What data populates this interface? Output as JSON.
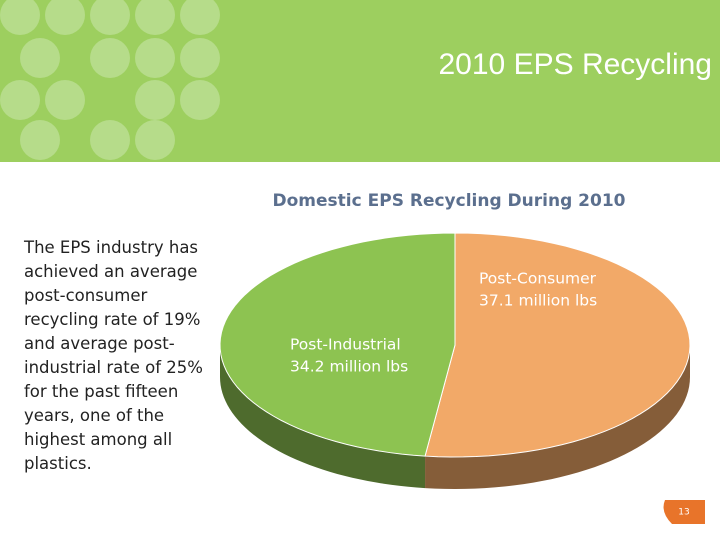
{
  "slide": {
    "title": "2010 EPS Recycling",
    "body": "The EPS industry has achieved an average post-consumer recycling rate of 19% and average post-industrial rate of 25% for the past fifteen years, one of the highest among all plastics.",
    "page_number": "13"
  },
  "chart_data": {
    "type": "pie",
    "title": "Domestic EPS Recycling During 2010",
    "categories": [
      "Post-Consumer",
      "Post-Industrial"
    ],
    "values": [
      37.1,
      34.2
    ],
    "value_labels": [
      "37.1 million lbs",
      "34.2 million lbs"
    ],
    "colors": [
      "#f2a968",
      "#8dc351"
    ]
  }
}
